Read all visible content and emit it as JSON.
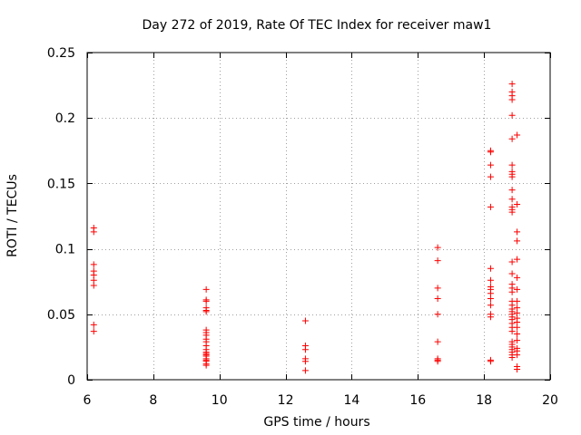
{
  "chart_data": {
    "type": "scatter",
    "title": "Day 272 of 2019, Rate Of TEC Index for receiver maw1",
    "xlabel": "GPS time / hours",
    "ylabel": "ROTI / TECUs",
    "xlim": [
      6,
      20
    ],
    "ylim": [
      0,
      0.25
    ],
    "x_ticks": [
      6,
      8,
      10,
      12,
      14,
      16,
      18,
      20
    ],
    "x_tick_labels": [
      "6",
      "8",
      "10",
      "12",
      "14",
      "16",
      "18",
      "20"
    ],
    "y_ticks": [
      0,
      0.05,
      0.1,
      0.15,
      0.2,
      0.25
    ],
    "y_tick_labels": [
      "0",
      "0.05",
      "0.1",
      "0.15",
      "0.2",
      "0.25"
    ],
    "grid": true,
    "marker": "+",
    "color": "#ff0000",
    "series": [
      {
        "name": "ROTI",
        "points": [
          [
            6.2,
            0.116
          ],
          [
            6.2,
            0.113
          ],
          [
            6.2,
            0.088
          ],
          [
            6.2,
            0.083
          ],
          [
            6.2,
            0.08
          ],
          [
            6.2,
            0.076
          ],
          [
            6.2,
            0.072
          ],
          [
            6.2,
            0.042
          ],
          [
            6.2,
            0.037
          ],
          [
            9.6,
            0.069
          ],
          [
            9.6,
            0.061
          ],
          [
            9.6,
            0.06
          ],
          [
            9.6,
            0.055
          ],
          [
            9.6,
            0.053
          ],
          [
            9.6,
            0.052
          ],
          [
            9.6,
            0.038
          ],
          [
            9.6,
            0.036
          ],
          [
            9.6,
            0.034
          ],
          [
            9.6,
            0.031
          ],
          [
            9.6,
            0.029
          ],
          [
            9.6,
            0.026
          ],
          [
            9.6,
            0.023
          ],
          [
            9.6,
            0.021
          ],
          [
            9.6,
            0.02
          ],
          [
            9.6,
            0.019
          ],
          [
            9.6,
            0.018
          ],
          [
            9.6,
            0.016
          ],
          [
            9.6,
            0.015
          ],
          [
            9.6,
            0.014
          ],
          [
            9.6,
            0.012
          ],
          [
            9.6,
            0.011
          ],
          [
            12.6,
            0.045
          ],
          [
            12.6,
            0.026
          ],
          [
            12.6,
            0.023
          ],
          [
            12.6,
            0.016
          ],
          [
            12.6,
            0.014
          ],
          [
            12.6,
            0.007
          ],
          [
            16.6,
            0.101
          ],
          [
            16.6,
            0.091
          ],
          [
            16.6,
            0.07
          ],
          [
            16.6,
            0.062
          ],
          [
            16.6,
            0.05
          ],
          [
            16.6,
            0.029
          ],
          [
            16.6,
            0.016
          ],
          [
            16.6,
            0.015
          ],
          [
            16.6,
            0.014
          ],
          [
            18.2,
            0.175
          ],
          [
            18.2,
            0.174
          ],
          [
            18.2,
            0.164
          ],
          [
            18.2,
            0.155
          ],
          [
            18.2,
            0.132
          ],
          [
            18.2,
            0.085
          ],
          [
            18.2,
            0.076
          ],
          [
            18.2,
            0.071
          ],
          [
            18.2,
            0.069
          ],
          [
            18.2,
            0.066
          ],
          [
            18.2,
            0.062
          ],
          [
            18.2,
            0.057
          ],
          [
            18.2,
            0.05
          ],
          [
            18.2,
            0.048
          ],
          [
            18.2,
            0.015
          ],
          [
            18.2,
            0.014
          ],
          [
            18.85,
            0.226
          ],
          [
            18.85,
            0.22
          ],
          [
            18.85,
            0.217
          ],
          [
            18.85,
            0.214
          ],
          [
            18.85,
            0.202
          ],
          [
            18.85,
            0.184
          ],
          [
            18.85,
            0.164
          ],
          [
            18.85,
            0.159
          ],
          [
            18.85,
            0.157
          ],
          [
            18.85,
            0.155
          ],
          [
            18.85,
            0.145
          ],
          [
            18.85,
            0.138
          ],
          [
            18.85,
            0.132
          ],
          [
            18.85,
            0.13
          ],
          [
            18.85,
            0.128
          ],
          [
            18.85,
            0.09
          ],
          [
            18.85,
            0.081
          ],
          [
            18.85,
            0.073
          ],
          [
            18.85,
            0.07
          ],
          [
            18.85,
            0.067
          ],
          [
            18.85,
            0.06
          ],
          [
            18.85,
            0.057
          ],
          [
            18.85,
            0.054
          ],
          [
            18.85,
            0.052
          ],
          [
            18.85,
            0.05
          ],
          [
            18.85,
            0.048
          ],
          [
            18.85,
            0.046
          ],
          [
            18.85,
            0.043
          ],
          [
            18.85,
            0.04
          ],
          [
            18.85,
            0.037
          ],
          [
            18.85,
            0.029
          ],
          [
            18.85,
            0.027
          ],
          [
            18.85,
            0.025
          ],
          [
            18.85,
            0.023
          ],
          [
            18.85,
            0.021
          ],
          [
            18.85,
            0.019
          ],
          [
            18.85,
            0.017
          ],
          [
            19.0,
            0.187
          ],
          [
            19.0,
            0.134
          ],
          [
            19.0,
            0.113
          ],
          [
            19.0,
            0.106
          ],
          [
            19.0,
            0.092
          ],
          [
            19.0,
            0.078
          ],
          [
            19.0,
            0.069
          ],
          [
            19.0,
            0.06
          ],
          [
            19.0,
            0.055
          ],
          [
            19.0,
            0.051
          ],
          [
            19.0,
            0.047
          ],
          [
            19.0,
            0.044
          ],
          [
            19.0,
            0.04
          ],
          [
            19.0,
            0.035
          ],
          [
            19.0,
            0.03
          ],
          [
            19.0,
            0.024
          ],
          [
            19.0,
            0.022
          ],
          [
            19.0,
            0.019
          ],
          [
            19.0,
            0.01
          ],
          [
            19.0,
            0.008
          ]
        ]
      }
    ]
  }
}
